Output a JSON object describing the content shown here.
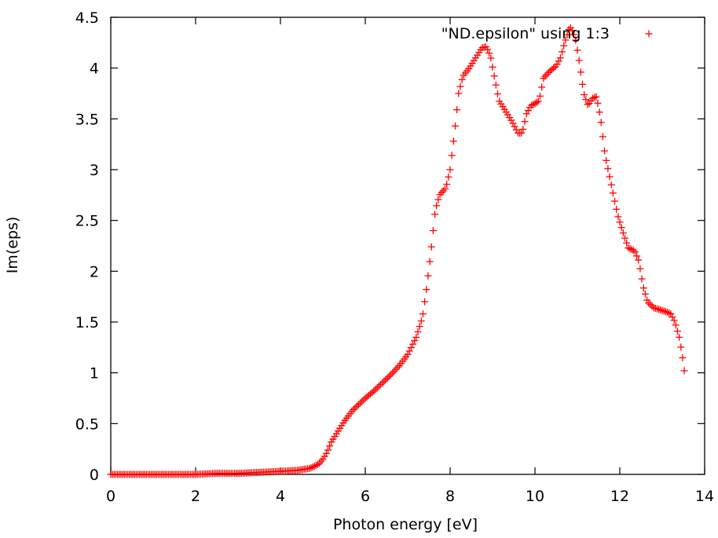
{
  "chart_data": {
    "type": "scatter",
    "title": "",
    "xlabel": "Photon energy [eV]",
    "ylabel": "Im(eps)",
    "xlim": [
      0,
      14
    ],
    "ylim": [
      0,
      4.5
    ],
    "x_ticks": [
      0,
      2,
      4,
      6,
      8,
      10,
      12,
      14
    ],
    "x_tick_labels": [
      "0",
      "2",
      "4",
      "6",
      "8",
      "10",
      "12",
      "14"
    ],
    "y_ticks": [
      0,
      0.5,
      1,
      1.5,
      2,
      2.5,
      3,
      3.5,
      4,
      4.5
    ],
    "y_tick_labels": [
      "0",
      "0.5",
      "1",
      "1.5",
      "2",
      "2.5",
      "3",
      "3.5",
      "4",
      "4.5"
    ],
    "grid": false,
    "legend_position": "top-right",
    "marker": "plus",
    "series": [
      {
        "name": "\"ND.epsilon\" using 1:3",
        "color": "#ff0000",
        "points": [
          [
            0.0,
            0.0
          ],
          [
            0.5,
            0.0
          ],
          [
            1.0,
            0.0
          ],
          [
            1.5,
            0.0
          ],
          [
            2.0,
            0.0
          ],
          [
            2.5,
            0.01
          ],
          [
            3.0,
            0.01
          ],
          [
            3.5,
            0.02
          ],
          [
            4.0,
            0.03
          ],
          [
            4.4,
            0.04
          ],
          [
            4.7,
            0.06
          ],
          [
            4.9,
            0.1
          ],
          [
            5.0,
            0.15
          ],
          [
            5.1,
            0.22
          ],
          [
            5.2,
            0.32
          ],
          [
            5.35,
            0.42
          ],
          [
            5.5,
            0.52
          ],
          [
            5.7,
            0.63
          ],
          [
            6.0,
            0.75
          ],
          [
            6.2,
            0.82
          ],
          [
            6.4,
            0.9
          ],
          [
            6.6,
            0.98
          ],
          [
            6.8,
            1.07
          ],
          [
            7.0,
            1.18
          ],
          [
            7.2,
            1.35
          ],
          [
            7.35,
            1.55
          ],
          [
            7.45,
            1.85
          ],
          [
            7.55,
            2.2
          ],
          [
            7.65,
            2.6
          ],
          [
            7.75,
            2.75
          ],
          [
            7.9,
            2.82
          ],
          [
            8.0,
            3.0
          ],
          [
            8.1,
            3.35
          ],
          [
            8.2,
            3.75
          ],
          [
            8.3,
            3.92
          ],
          [
            8.45,
            4.0
          ],
          [
            8.6,
            4.1
          ],
          [
            8.75,
            4.2
          ],
          [
            8.85,
            4.21
          ],
          [
            8.95,
            4.12
          ],
          [
            9.05,
            3.9
          ],
          [
            9.15,
            3.68
          ],
          [
            9.3,
            3.58
          ],
          [
            9.45,
            3.48
          ],
          [
            9.6,
            3.36
          ],
          [
            9.7,
            3.36
          ],
          [
            9.8,
            3.55
          ],
          [
            9.9,
            3.63
          ],
          [
            10.0,
            3.65
          ],
          [
            10.1,
            3.68
          ],
          [
            10.2,
            3.9
          ],
          [
            10.35,
            3.97
          ],
          [
            10.5,
            4.02
          ],
          [
            10.6,
            4.1
          ],
          [
            10.7,
            4.25
          ],
          [
            10.8,
            4.38
          ],
          [
            10.85,
            4.4
          ],
          [
            10.95,
            4.3
          ],
          [
            11.05,
            4.05
          ],
          [
            11.15,
            3.75
          ],
          [
            11.25,
            3.63
          ],
          [
            11.35,
            3.7
          ],
          [
            11.45,
            3.72
          ],
          [
            11.55,
            3.5
          ],
          [
            11.65,
            3.15
          ],
          [
            11.8,
            2.85
          ],
          [
            11.95,
            2.55
          ],
          [
            12.1,
            2.35
          ],
          [
            12.2,
            2.23
          ],
          [
            12.35,
            2.2
          ],
          [
            12.45,
            2.1
          ],
          [
            12.55,
            1.85
          ],
          [
            12.65,
            1.7
          ],
          [
            12.8,
            1.64
          ],
          [
            12.95,
            1.62
          ],
          [
            13.1,
            1.6
          ],
          [
            13.2,
            1.58
          ],
          [
            13.3,
            1.5
          ],
          [
            13.4,
            1.35
          ],
          [
            13.47,
            1.18
          ],
          [
            13.52,
            1.02
          ],
          [
            13.55,
            0.92
          ]
        ]
      }
    ]
  }
}
